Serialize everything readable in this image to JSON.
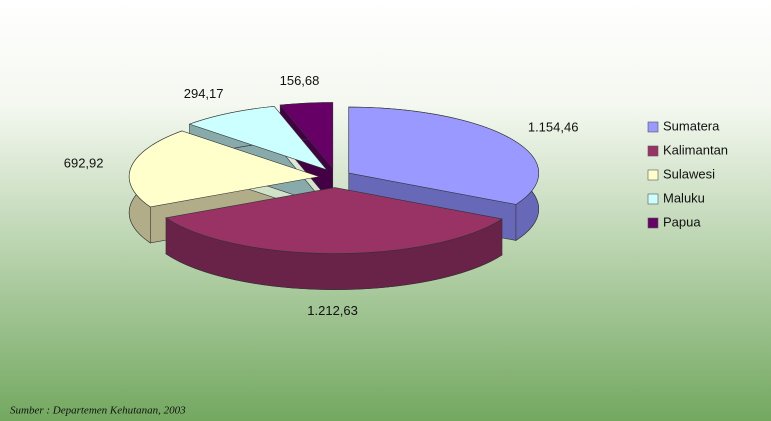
{
  "chart_data": {
    "type": "pie3d",
    "categories": [
      "Sumatera",
      "Kalimantan",
      "Sulawesi",
      "Maluku",
      "Papua"
    ],
    "values": [
      1154.46,
      1212.63,
      692.92,
      294.17,
      156.68
    ],
    "value_labels": [
      "1.154,46",
      "1.212,63",
      "692,92",
      "294,17",
      "156,68"
    ],
    "colors": [
      "#9999ff",
      "#993366",
      "#ffffcc",
      "#ccffff",
      "#660066"
    ],
    "side_colors": [
      "#6868b8",
      "#6a2348",
      "#b0ad88",
      "#88aaaa",
      "#440044"
    ],
    "source": "Sumber : Departemen Kehutanan, 2003",
    "legend": "right"
  }
}
